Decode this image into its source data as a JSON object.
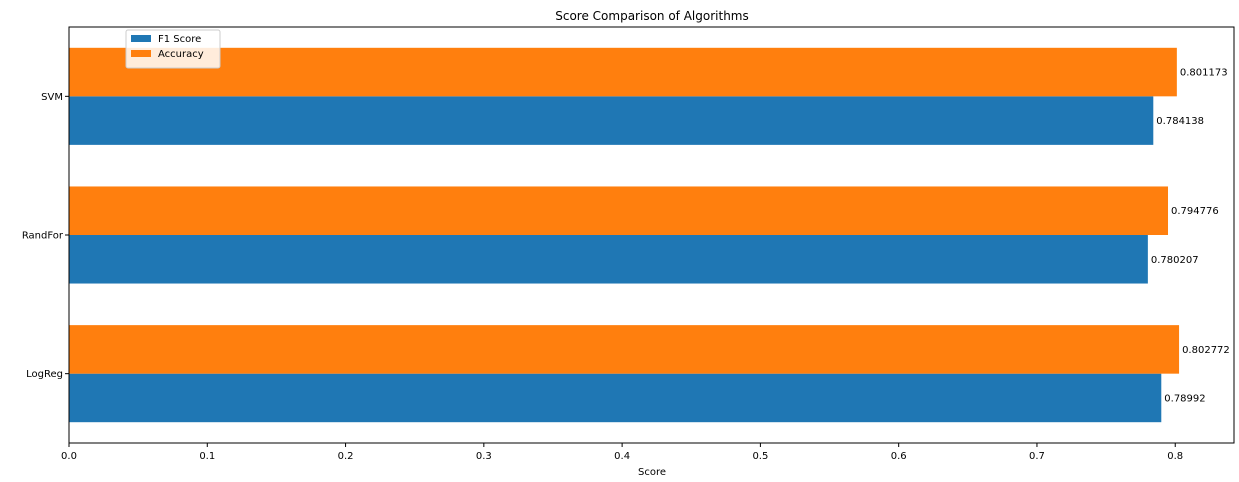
{
  "chart_data": {
    "type": "bar",
    "orientation": "horizontal",
    "title": "Score Comparison of Algorithms",
    "xlabel": "Score",
    "ylabel": "",
    "categories": [
      "LogReg",
      "RandFor",
      "SVM"
    ],
    "series": [
      {
        "name": "F1 Score",
        "color": "#1f77b4",
        "values": [
          0.78992,
          0.780207,
          0.784138
        ],
        "value_labels": [
          "0.78992",
          "0.780207",
          "0.784138"
        ]
      },
      {
        "name": "Accuracy",
        "color": "#ff7f0e",
        "values": [
          0.802772,
          0.794776,
          0.801173
        ],
        "value_labels": [
          "0.802772",
          "0.794776",
          "0.801173"
        ]
      }
    ],
    "xlim": [
      0,
      0.8425
    ],
    "xticks": [
      0.0,
      0.1,
      0.2,
      0.3,
      0.4,
      0.5,
      0.6,
      0.7,
      0.8
    ],
    "xtick_labels": [
      "0.0",
      "0.1",
      "0.2",
      "0.3",
      "0.4",
      "0.5",
      "0.6",
      "0.7",
      "0.8"
    ],
    "grid": false,
    "legend_position": "upper-left"
  }
}
